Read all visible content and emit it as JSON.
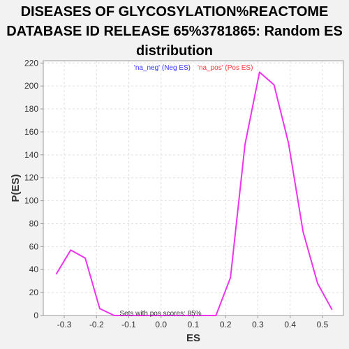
{
  "chart_data": {
    "type": "line",
    "title_lines": [
      "DISEASES OF GLYCOSYLATION%REACTOME",
      "DATABASE ID RELEASE 65%3781865: Random ES",
      "distribution"
    ],
    "xlabel": "ES",
    "ylabel": "P(ES)",
    "xlim": [
      -0.365,
      0.565
    ],
    "ylim": [
      0,
      222
    ],
    "x_ticks": [
      -0.3,
      -0.2,
      -0.1,
      0.0,
      0.1,
      0.2,
      0.3,
      0.4,
      0.5
    ],
    "x_tick_labels": [
      "-0.3",
      "-0.2",
      "-0.1",
      "0.0",
      "0.1",
      "0.2",
      "0.3",
      "0.4",
      "0.5"
    ],
    "y_ticks": [
      0,
      20,
      40,
      60,
      80,
      100,
      120,
      140,
      160,
      180,
      200,
      220
    ],
    "y_tick_labels": [
      "0",
      "20",
      "40",
      "60",
      "80",
      "100",
      "120",
      "140",
      "160",
      "180",
      "200",
      "220"
    ],
    "grid": true,
    "legend": {
      "placement": "top-center",
      "entries": [
        {
          "label": "'na_neg' (Neg ES)",
          "color": "#3333ff"
        },
        {
          "label": "'na_pos' (Pos ES)",
          "color": "#ff3333"
        }
      ]
    },
    "annotation": "Sets with pos scores: 85%",
    "series": [
      {
        "color": "#ee33ee",
        "x": [
          -0.325,
          -0.28,
          -0.235,
          -0.19,
          -0.145,
          -0.1,
          -0.055,
          -0.01,
          0.035,
          0.08,
          0.125,
          0.17,
          0.215,
          0.26,
          0.305,
          0.35,
          0.395,
          0.44,
          0.485,
          0.53
        ],
        "y": [
          36,
          57,
          50,
          6,
          0,
          0,
          0,
          0,
          0,
          0,
          0,
          0,
          33,
          149,
          212,
          201,
          150,
          73,
          28,
          5
        ]
      }
    ]
  },
  "colors": {
    "background": "#f2f2f2",
    "plot_background": "#ffffff",
    "grid": "#e0e0e0",
    "axis": "#999999"
  }
}
